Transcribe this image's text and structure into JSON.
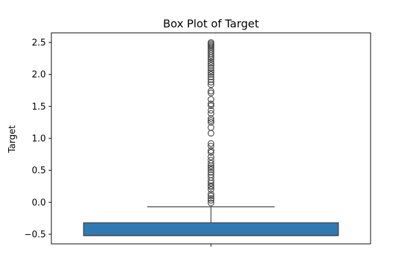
{
  "chart_data": {
    "type": "box",
    "title": "Box Plot of Target",
    "xlabel": "",
    "ylabel": "Target",
    "ylim": [
      -0.65,
      2.65
    ],
    "yticks": [
      -0.5,
      0.0,
      0.5,
      1.0,
      1.5,
      2.0,
      2.5
    ],
    "ytick_labels": [
      "−0.5",
      "0.0",
      "0.5",
      "1.0",
      "1.5",
      "2.0",
      "2.5"
    ],
    "grid": false,
    "legend": "none",
    "box": {
      "whisker_low": -0.52,
      "q1": -0.52,
      "median": -0.52,
      "q3": -0.32,
      "whisker_high": -0.07
    },
    "outliers": [
      -0.01,
      0.03,
      0.06,
      0.1,
      0.13,
      0.2,
      0.24,
      0.26,
      0.3,
      0.34,
      0.39,
      0.43,
      0.47,
      0.51,
      0.54,
      0.57,
      0.61,
      0.66,
      0.71,
      0.78,
      0.81,
      0.88,
      0.92,
      1.08,
      1.17,
      1.25,
      1.28,
      1.31,
      1.39,
      1.44,
      1.51,
      1.54,
      1.61,
      1.71,
      1.74,
      1.84,
      1.88,
      1.92,
      1.96,
      2.0,
      2.03,
      2.06,
      2.1,
      2.14,
      2.17,
      2.2,
      2.24,
      2.27,
      2.3,
      2.33,
      2.36,
      2.39,
      2.42,
      2.44,
      2.46,
      2.48,
      2.5
    ],
    "colors": {
      "box_fill": "#2f7ab2",
      "line": "#3d3d3d",
      "outlier_edge": "#3d3d3d"
    }
  }
}
